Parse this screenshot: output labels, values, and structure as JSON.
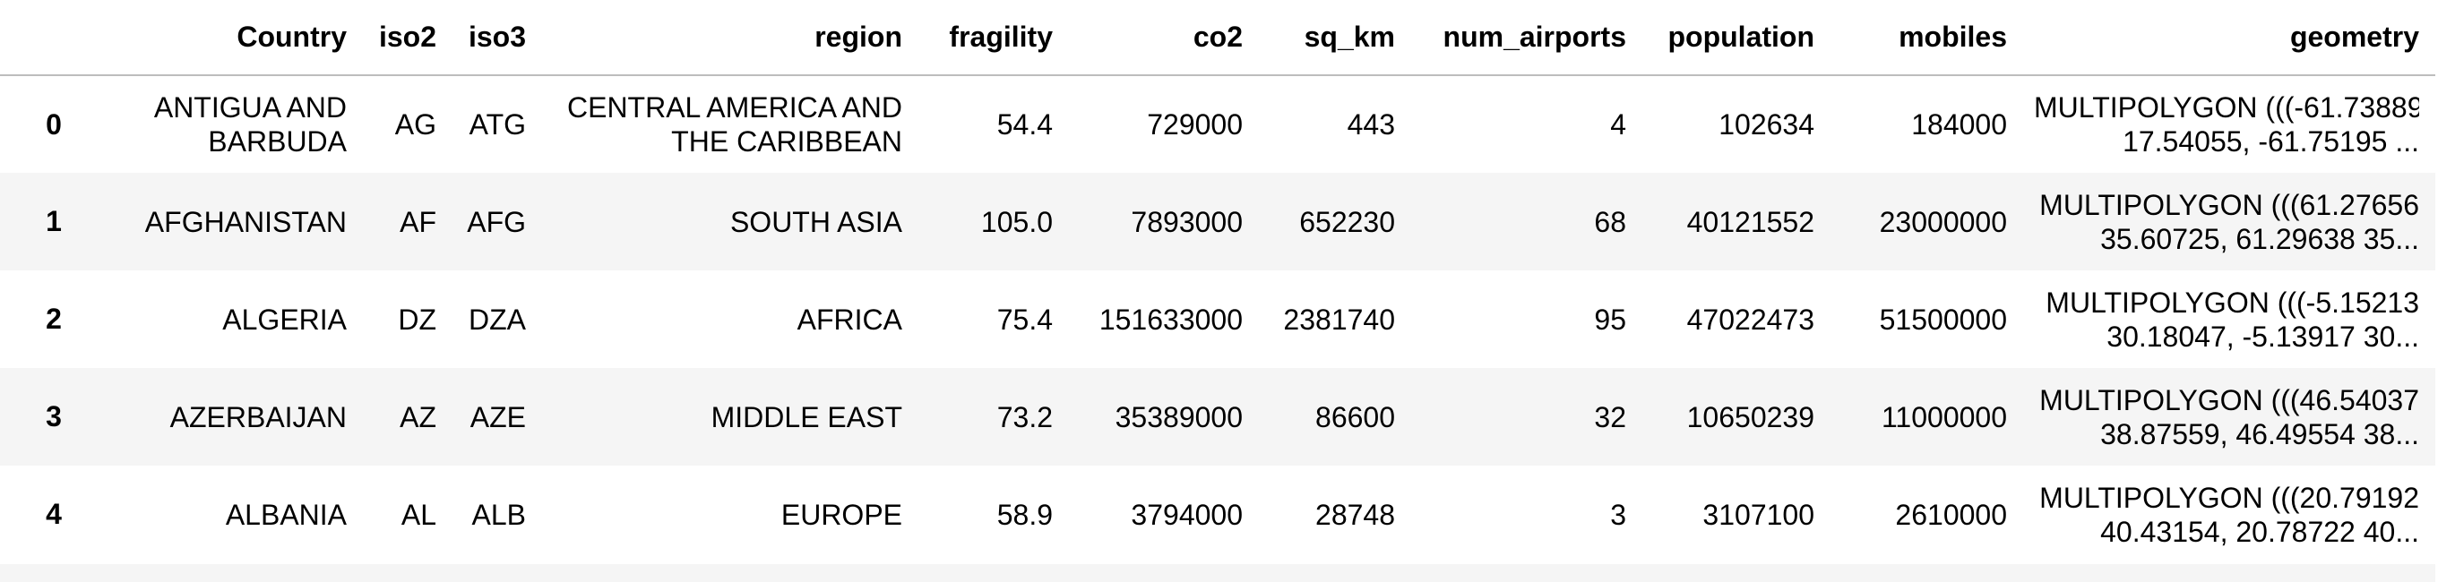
{
  "table": {
    "columns": {
      "index": "",
      "country": "Country",
      "iso2": "iso2",
      "iso3": "iso3",
      "region": "region",
      "fragility": "fragility",
      "co2": "co2",
      "sq_km": "sq_km",
      "num_airports": "num_airports",
      "population": "population",
      "mobiles": "mobiles",
      "geometry": "geometry"
    },
    "rows": [
      {
        "index": "0",
        "country": "ANTIGUA AND BARBUDA",
        "iso2": "AG",
        "iso3": "ATG",
        "region": "CENTRAL AMERICA AND THE CARIBBEAN",
        "fragility": "54.4",
        "co2": "729000",
        "sq_km": "443",
        "num_airports": "4",
        "population": "102634",
        "mobiles": "184000",
        "geometry_line1": "MULTIPOLYGON (((-61.73889",
        "geometry_line2": "17.54055, -61.75195 ..."
      },
      {
        "index": "1",
        "country": "AFGHANISTAN",
        "iso2": "AF",
        "iso3": "AFG",
        "region": "SOUTH ASIA",
        "fragility": "105.0",
        "co2": "7893000",
        "sq_km": "652230",
        "num_airports": "68",
        "population": "40121552",
        "mobiles": "23000000",
        "geometry_line1": "MULTIPOLYGON (((61.27656",
        "geometry_line2": "35.60725, 61.29638 35..."
      },
      {
        "index": "2",
        "country": "ALGERIA",
        "iso2": "DZ",
        "iso3": "DZA",
        "region": "AFRICA",
        "fragility": "75.4",
        "co2": "151633000",
        "sq_km": "2381740",
        "num_airports": "95",
        "population": "47022473",
        "mobiles": "51500000",
        "geometry_line1": "MULTIPOLYGON (((-5.15213",
        "geometry_line2": "30.18047, -5.13917 30..."
      },
      {
        "index": "3",
        "country": "AZERBAIJAN",
        "iso2": "AZ",
        "iso3": "AZE",
        "region": "MIDDLE EAST",
        "fragility": "73.2",
        "co2": "35389000",
        "sq_km": "86600",
        "num_airports": "32",
        "population": "10650239",
        "mobiles": "11000000",
        "geometry_line1": "MULTIPOLYGON (((46.54037",
        "geometry_line2": "38.87559, 46.49554 38..."
      },
      {
        "index": "4",
        "country": "ALBANIA",
        "iso2": "AL",
        "iso3": "ALB",
        "region": "EUROPE",
        "fragility": "58.9",
        "co2": "3794000",
        "sq_km": "28748",
        "num_airports": "3",
        "population": "3107100",
        "mobiles": "2610000",
        "geometry_line1": "MULTIPOLYGON (((20.79192",
        "geometry_line2": "40.43154, 20.78722 40..."
      }
    ]
  }
}
